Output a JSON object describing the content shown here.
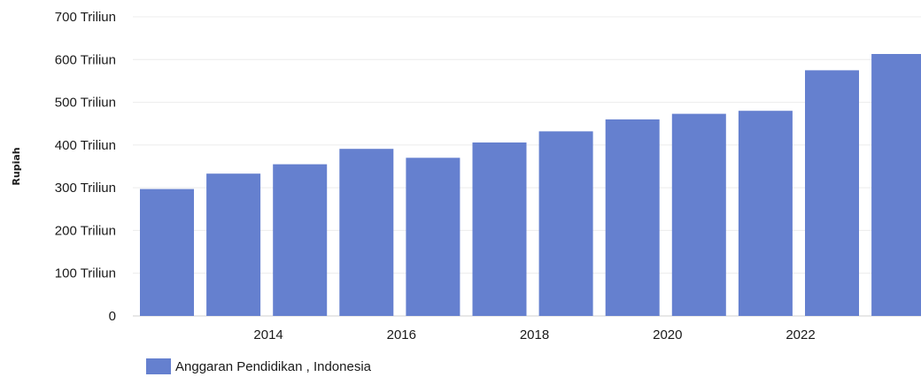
{
  "chart_data": {
    "type": "bar",
    "categories": [
      "2012",
      "2013",
      "2014",
      "2015",
      "2016",
      "2017",
      "2018",
      "2019",
      "2020",
      "2021",
      "2022",
      "2023"
    ],
    "series": [
      {
        "name": "Anggaran Pendidikan , Indonesia",
        "values": [
          297,
          333,
          355,
          391,
          370,
          406,
          432,
          460,
          473,
          480,
          575,
          613
        ]
      }
    ],
    "ylabel": "Rupiah",
    "ylim": [
      0,
      700
    ],
    "yticks": [
      0,
      100,
      200,
      300,
      400,
      500,
      600,
      700
    ],
    "ytick_labels": [
      "0",
      "100 Triliun",
      "200 Triliun",
      "300 Triliun",
      "400 Triliun",
      "500 Triliun",
      "600 Triliun",
      "700 Triliun"
    ],
    "xtick_labels": [
      "2014",
      "2016",
      "2018",
      "2020",
      "2022"
    ],
    "bar_color": "#6580cf",
    "gridlines": true,
    "legend_position": "bottom-left"
  }
}
